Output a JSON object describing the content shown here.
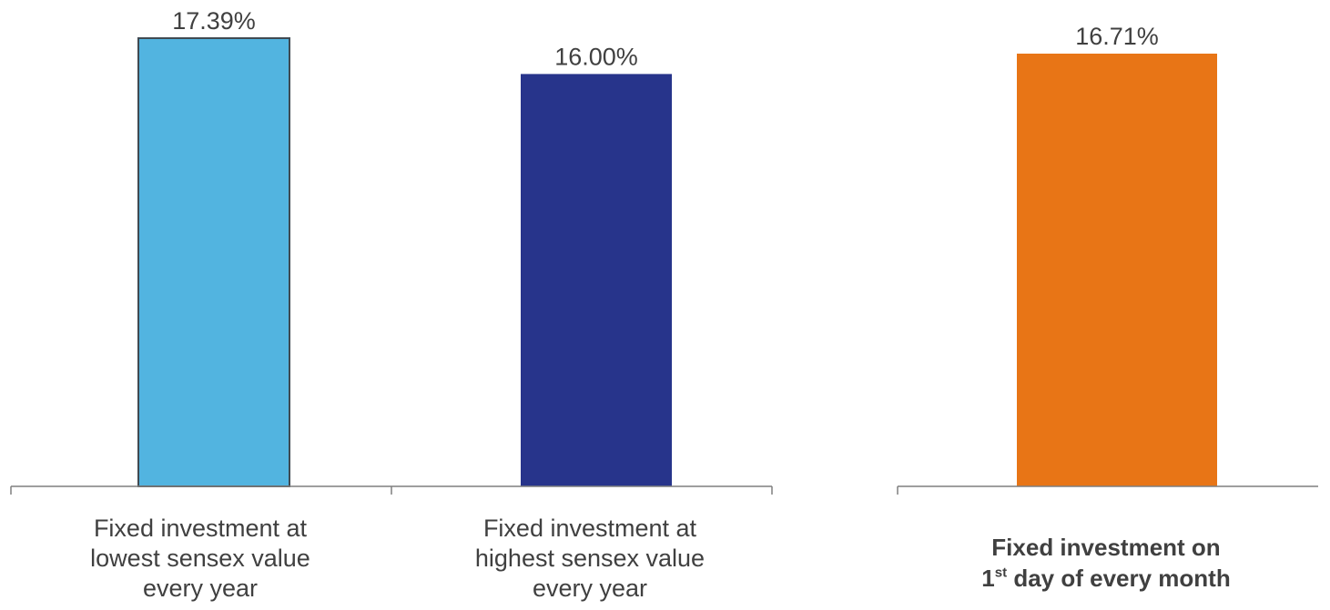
{
  "colors": {
    "axis": "#7f7f7f",
    "text": "#404040",
    "bar_outline": "#404a52"
  },
  "chart_data": [
    {
      "type": "bar",
      "categories": [
        "Fixed investment at lowest sensex value every year",
        "Fixed investment at highest sensex value every year"
      ],
      "values": [
        17.39,
        16.0
      ],
      "value_labels": [
        "17.39%",
        "16.00%"
      ],
      "colors": [
        "#52b4e0",
        "#27348b"
      ],
      "ylim": [
        0,
        17.39
      ],
      "grid": false,
      "label_lines": [
        [
          "Fixed investment at",
          "lowest sensex value",
          "every year"
        ],
        [
          "Fixed investment at",
          "highest sensex value",
          "every year"
        ]
      ]
    },
    {
      "type": "bar",
      "categories": [
        "Fixed investment on 1st day of every month"
      ],
      "values": [
        16.71
      ],
      "value_labels": [
        "16.71%"
      ],
      "colors": [
        "#e87516"
      ],
      "ylim": [
        0,
        16.71
      ],
      "grid": false,
      "label_line1": "Fixed investment on",
      "label_ordinal": "1",
      "label_ordinal_suffix": "st",
      "label_line2_rest": " day of every month"
    }
  ]
}
